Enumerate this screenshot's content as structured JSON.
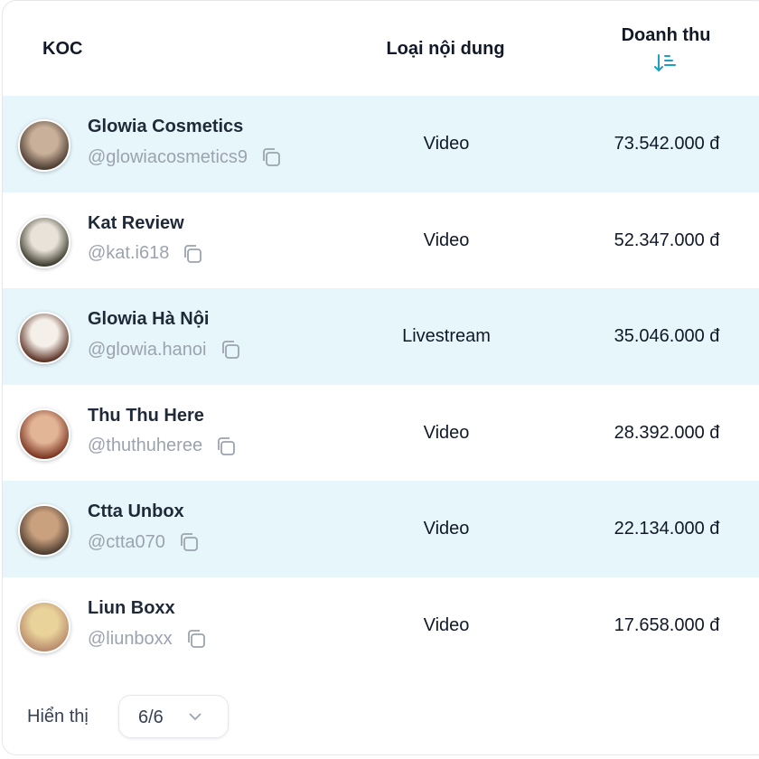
{
  "table": {
    "columns": [
      "KOC",
      "Loại nội dung",
      "Doanh thu"
    ],
    "rows": [
      {
        "name": "Glowia Cosmetics",
        "handle": "@glowiacosmetics9",
        "type": "Video",
        "revenue": "73.542.000 đ"
      },
      {
        "name": "Kat Review",
        "handle": "@kat.i618",
        "type": "Video",
        "revenue": "52.347.000 đ"
      },
      {
        "name": "Glowia Hà Nội",
        "handle": "@glowia.hanoi",
        "type": "Livestream",
        "revenue": "35.046.000 đ"
      },
      {
        "name": "Thu Thu Here",
        "handle": "@thuthuheree",
        "type": "Video",
        "revenue": "28.392.000 đ"
      },
      {
        "name": "Ctta Unbox",
        "handle": "@ctta070",
        "type": "Video",
        "revenue": "22.134.000 đ"
      },
      {
        "name": "Liun Boxx",
        "handle": "@liunboxx",
        "type": "Video",
        "revenue": "17.658.000 đ"
      }
    ]
  },
  "footer": {
    "label": "Hiển thị",
    "page_size": "6/6"
  }
}
